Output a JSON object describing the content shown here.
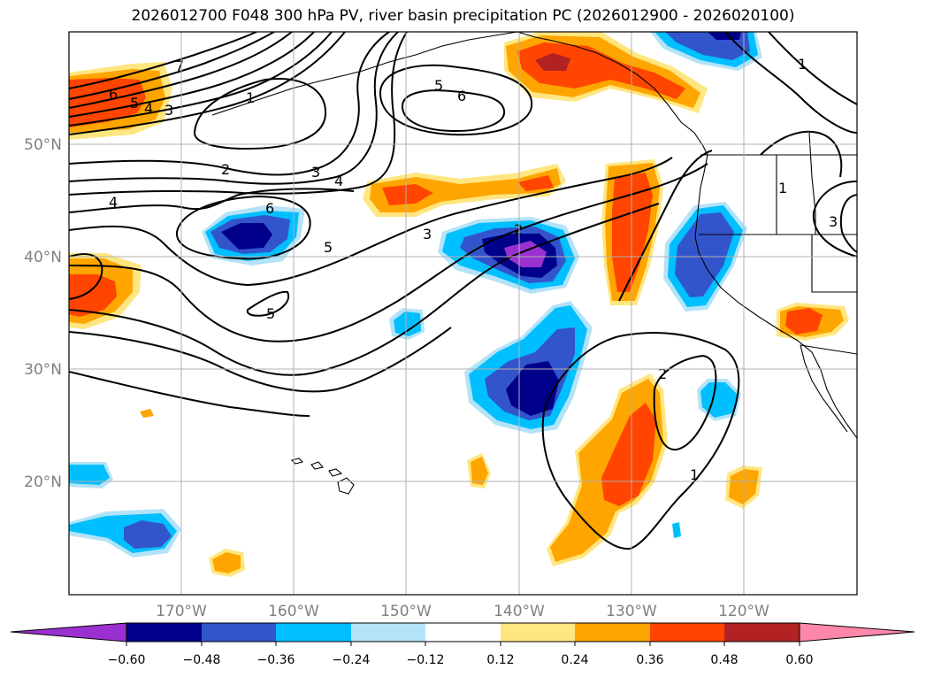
{
  "title": "2026012700 F048 300 hPa PV, river basin precipitation PC (2026012900 - 2026020100)",
  "lat_labels": [
    "50°N",
    "40°N",
    "30°N",
    "20°N"
  ],
  "lon_labels": [
    "170°W",
    "160°W",
    "150°W",
    "140°W",
    "130°W",
    "120°W"
  ],
  "colorbar": {
    "ticks": [
      "−0.60",
      "−0.48",
      "−0.36",
      "−0.24",
      "−0.12",
      "0.12",
      "0.24",
      "0.36",
      "0.48",
      "0.60"
    ],
    "colors": [
      "#9b30d0",
      "#00008b",
      "#3355cc",
      "#00bfff",
      "#b3e3f7",
      "#ffffff",
      "#ffe680",
      "#ffa500",
      "#ff4500",
      "#b22222",
      "#ff88aa"
    ]
  },
  "contour_labels": [
    "7",
    "6",
    "5",
    "4",
    "3",
    "1",
    "5",
    "6",
    "2",
    "3",
    "4",
    "6",
    "4",
    "5",
    "5",
    "3",
    "2",
    "1",
    "1",
    "3",
    "2",
    "1"
  ],
  "colors": {
    "purple": "#9b30d0",
    "navy": "#00008b",
    "blue": "#3355cc",
    "sky": "#00bfff",
    "pale_blue": "#b3e3f7",
    "yellow": "#ffe680",
    "orange": "#ffa500",
    "red_orange": "#ff4500",
    "dark_red": "#b22222",
    "pink": "#ff88aa"
  }
}
